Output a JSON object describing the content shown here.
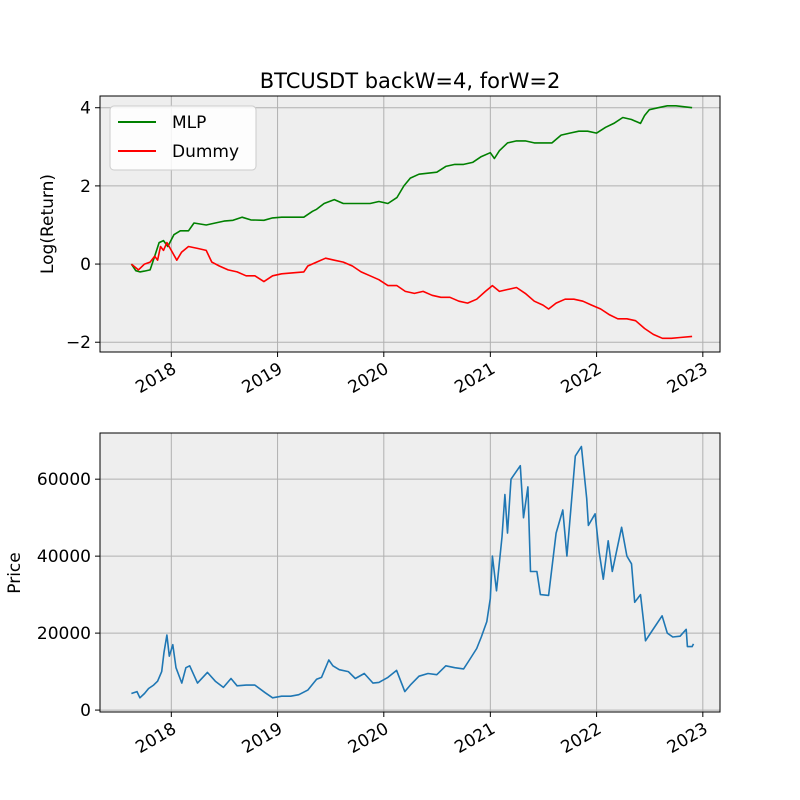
{
  "chart_data": [
    {
      "type": "line",
      "title": "BTCUSDT backW=4, forW=2",
      "xlabel": "",
      "ylabel": "Log(Return)",
      "x_ticks": [
        "2018",
        "2019",
        "2020",
        "2021",
        "2022",
        "2023"
      ],
      "y_ticks": [
        "−2",
        "0",
        "2",
        "4"
      ],
      "xlim": [
        "2017-05-01",
        "2023-03-01"
      ],
      "ylim": [
        -2.25,
        4.3
      ],
      "grid": true,
      "legend": "top-left",
      "series": [
        {
          "name": "MLP",
          "color": "#008000",
          "points": [
            [
              "2017-08-17",
              0.0
            ],
            [
              "2017-09-01",
              -0.17
            ],
            [
              "2017-09-15",
              -0.2
            ],
            [
              "2017-10-01",
              -0.18
            ],
            [
              "2017-10-20",
              -0.15
            ],
            [
              "2017-11-05",
              0.2
            ],
            [
              "2017-11-20",
              0.55
            ],
            [
              "2017-12-05",
              0.6
            ],
            [
              "2017-12-20",
              0.45
            ],
            [
              "2018-01-10",
              0.75
            ],
            [
              "2018-02-01",
              0.85
            ],
            [
              "2018-03-01",
              0.85
            ],
            [
              "2018-03-20",
              1.05
            ],
            [
              "2018-05-01",
              1.0
            ],
            [
              "2018-06-01",
              1.05
            ],
            [
              "2018-07-01",
              1.1
            ],
            [
              "2018-08-01",
              1.12
            ],
            [
              "2018-09-01",
              1.2
            ],
            [
              "2018-10-01",
              1.13
            ],
            [
              "2018-11-15",
              1.12
            ],
            [
              "2018-12-15",
              1.18
            ],
            [
              "2019-01-15",
              1.2
            ],
            [
              "2019-03-01",
              1.2
            ],
            [
              "2019-04-01",
              1.2
            ],
            [
              "2019-05-01",
              1.35
            ],
            [
              "2019-05-15",
              1.4
            ],
            [
              "2019-06-10",
              1.55
            ],
            [
              "2019-07-15",
              1.65
            ],
            [
              "2019-08-15",
              1.55
            ],
            [
              "2019-10-01",
              1.55
            ],
            [
              "2019-11-15",
              1.55
            ],
            [
              "2019-12-15",
              1.6
            ],
            [
              "2020-01-15",
              1.55
            ],
            [
              "2020-02-15",
              1.7
            ],
            [
              "2020-03-10",
              2.0
            ],
            [
              "2020-04-01",
              2.2
            ],
            [
              "2020-05-01",
              2.3
            ],
            [
              "2020-07-01",
              2.35
            ],
            [
              "2020-08-01",
              2.5
            ],
            [
              "2020-09-01",
              2.55
            ],
            [
              "2020-10-01",
              2.55
            ],
            [
              "2020-11-01",
              2.6
            ],
            [
              "2020-12-01",
              2.75
            ],
            [
              "2021-01-01",
              2.85
            ],
            [
              "2021-01-15",
              2.7
            ],
            [
              "2021-02-01",
              2.9
            ],
            [
              "2021-03-01",
              3.1
            ],
            [
              "2021-04-01",
              3.15
            ],
            [
              "2021-05-01",
              3.15
            ],
            [
              "2021-06-01",
              3.1
            ],
            [
              "2021-08-01",
              3.1
            ],
            [
              "2021-09-01",
              3.3
            ],
            [
              "2021-10-01",
              3.35
            ],
            [
              "2021-11-01",
              3.4
            ],
            [
              "2021-12-01",
              3.4
            ],
            [
              "2022-01-01",
              3.35
            ],
            [
              "2022-02-01",
              3.5
            ],
            [
              "2022-03-01",
              3.6
            ],
            [
              "2022-04-01",
              3.75
            ],
            [
              "2022-05-01",
              3.7
            ],
            [
              "2022-06-01",
              3.6
            ],
            [
              "2022-06-15",
              3.8
            ],
            [
              "2022-07-01",
              3.95
            ],
            [
              "2022-08-01",
              4.0
            ],
            [
              "2022-09-01",
              4.05
            ],
            [
              "2022-10-01",
              4.05
            ],
            [
              "2022-11-25",
              4.0
            ]
          ]
        },
        {
          "name": "Dummy",
          "color": "#ff0000",
          "points": [
            [
              "2017-08-17",
              0.0
            ],
            [
              "2017-09-10",
              -0.15
            ],
            [
              "2017-10-01",
              0.0
            ],
            [
              "2017-10-20",
              0.05
            ],
            [
              "2017-11-05",
              0.2
            ],
            [
              "2017-11-15",
              0.1
            ],
            [
              "2017-11-25",
              0.45
            ],
            [
              "2017-12-05",
              0.35
            ],
            [
              "2017-12-17",
              0.55
            ],
            [
              "2018-01-01",
              0.35
            ],
            [
              "2018-01-20",
              0.1
            ],
            [
              "2018-02-05",
              0.3
            ],
            [
              "2018-03-01",
              0.45
            ],
            [
              "2018-04-01",
              0.4
            ],
            [
              "2018-05-01",
              0.35
            ],
            [
              "2018-05-20",
              0.05
            ],
            [
              "2018-06-15",
              -0.05
            ],
            [
              "2018-07-15",
              -0.15
            ],
            [
              "2018-08-15",
              -0.2
            ],
            [
              "2018-09-15",
              -0.3
            ],
            [
              "2018-10-15",
              -0.3
            ],
            [
              "2018-11-15",
              -0.45
            ],
            [
              "2018-12-15",
              -0.3
            ],
            [
              "2019-01-15",
              -0.25
            ],
            [
              "2019-03-01",
              -0.22
            ],
            [
              "2019-04-01",
              -0.2
            ],
            [
              "2019-04-15",
              -0.05
            ],
            [
              "2019-05-15",
              0.05
            ],
            [
              "2019-06-15",
              0.15
            ],
            [
              "2019-07-15",
              0.1
            ],
            [
              "2019-08-15",
              0.05
            ],
            [
              "2019-09-15",
              -0.05
            ],
            [
              "2019-10-15",
              -0.2
            ],
            [
              "2019-11-15",
              -0.3
            ],
            [
              "2019-12-15",
              -0.4
            ],
            [
              "2020-01-15",
              -0.55
            ],
            [
              "2020-02-15",
              -0.55
            ],
            [
              "2020-03-15",
              -0.7
            ],
            [
              "2020-04-15",
              -0.75
            ],
            [
              "2020-05-15",
              -0.7
            ],
            [
              "2020-06-15",
              -0.8
            ],
            [
              "2020-07-15",
              -0.85
            ],
            [
              "2020-08-15",
              -0.85
            ],
            [
              "2020-09-15",
              -0.95
            ],
            [
              "2020-10-15",
              -1.0
            ],
            [
              "2020-11-15",
              -0.9
            ],
            [
              "2020-12-15",
              -0.7
            ],
            [
              "2021-01-08",
              -0.55
            ],
            [
              "2021-02-01",
              -0.7
            ],
            [
              "2021-03-01",
              -0.65
            ],
            [
              "2021-04-01",
              -0.6
            ],
            [
              "2021-05-01",
              -0.75
            ],
            [
              "2021-06-01",
              -0.95
            ],
            [
              "2021-07-01",
              -1.05
            ],
            [
              "2021-07-20",
              -1.15
            ],
            [
              "2021-08-15",
              -1.0
            ],
            [
              "2021-09-15",
              -0.9
            ],
            [
              "2021-10-15",
              -0.9
            ],
            [
              "2021-11-15",
              -0.95
            ],
            [
              "2021-12-15",
              -1.05
            ],
            [
              "2022-01-15",
              -1.15
            ],
            [
              "2022-02-15",
              -1.3
            ],
            [
              "2022-03-15",
              -1.4
            ],
            [
              "2022-04-15",
              -1.4
            ],
            [
              "2022-05-15",
              -1.45
            ],
            [
              "2022-06-15",
              -1.65
            ],
            [
              "2022-07-15",
              -1.8
            ],
            [
              "2022-08-15",
              -1.9
            ],
            [
              "2022-09-15",
              -1.9
            ],
            [
              "2022-10-15",
              -1.88
            ],
            [
              "2022-11-25",
              -1.85
            ]
          ]
        }
      ]
    },
    {
      "type": "line",
      "title": "",
      "xlabel": "",
      "ylabel": "Price",
      "x_ticks": [
        "2018",
        "2019",
        "2020",
        "2021",
        "2022",
        "2023"
      ],
      "y_ticks": [
        "0",
        "20000",
        "40000",
        "60000"
      ],
      "xlim": [
        "2017-05-01",
        "2023-03-01"
      ],
      "ylim": [
        -500,
        72000
      ],
      "grid": true,
      "series": [
        {
          "color": "#1f77b4",
          "points": [
            [
              "2017-08-17",
              4300
            ],
            [
              "2017-09-05",
              4800
            ],
            [
              "2017-09-15",
              3200
            ],
            [
              "2017-10-01",
              4300
            ],
            [
              "2017-10-15",
              5600
            ],
            [
              "2017-11-01",
              6500
            ],
            [
              "2017-11-15",
              7500
            ],
            [
              "2017-11-29",
              10000
            ],
            [
              "2017-12-07",
              15000
            ],
            [
              "2017-12-17",
              19500
            ],
            [
              "2017-12-25",
              14000
            ],
            [
              "2018-01-06",
              17000
            ],
            [
              "2018-01-17",
              11000
            ],
            [
              "2018-02-06",
              7000
            ],
            [
              "2018-02-20",
              11000
            ],
            [
              "2018-03-05",
              11500
            ],
            [
              "2018-04-01",
              7000
            ],
            [
              "2018-05-05",
              9800
            ],
            [
              "2018-06-01",
              7500
            ],
            [
              "2018-06-29",
              5900
            ],
            [
              "2018-07-25",
              8200
            ],
            [
              "2018-08-15",
              6300
            ],
            [
              "2018-09-15",
              6500
            ],
            [
              "2018-10-15",
              6500
            ],
            [
              "2018-11-20",
              4500
            ],
            [
              "2018-12-15",
              3200
            ],
            [
              "2019-01-15",
              3600
            ],
            [
              "2019-02-15",
              3600
            ],
            [
              "2019-03-15",
              4000
            ],
            [
              "2019-04-15",
              5200
            ],
            [
              "2019-05-15",
              8000
            ],
            [
              "2019-06-01",
              8500
            ],
            [
              "2019-06-26",
              13000
            ],
            [
              "2019-07-10",
              11500
            ],
            [
              "2019-08-01",
              10500
            ],
            [
              "2019-09-01",
              10000
            ],
            [
              "2019-09-25",
              8200
            ],
            [
              "2019-10-26",
              9500
            ],
            [
              "2019-11-25",
              7000
            ],
            [
              "2019-12-15",
              7200
            ],
            [
              "2020-01-15",
              8500
            ],
            [
              "2020-02-14",
              10300
            ],
            [
              "2020-03-13",
              4800
            ],
            [
              "2020-04-01",
              6500
            ],
            [
              "2020-05-01",
              8800
            ],
            [
              "2020-06-01",
              9500
            ],
            [
              "2020-07-01",
              9200
            ],
            [
              "2020-08-01",
              11500
            ],
            [
              "2020-09-01",
              11000
            ],
            [
              "2020-10-01",
              10700
            ],
            [
              "2020-10-21",
              13000
            ],
            [
              "2020-11-15",
              16000
            ],
            [
              "2020-12-01",
              19000
            ],
            [
              "2020-12-20",
              23000
            ],
            [
              "2021-01-01",
              29000
            ],
            [
              "2021-01-08",
              40000
            ],
            [
              "2021-01-22",
              31000
            ],
            [
              "2021-02-10",
              45000
            ],
            [
              "2021-02-20",
              56000
            ],
            [
              "2021-03-01",
              46000
            ],
            [
              "2021-03-13",
              60000
            ],
            [
              "2021-04-14",
              63500
            ],
            [
              "2021-04-25",
              50000
            ],
            [
              "2021-05-10",
              58000
            ],
            [
              "2021-05-19",
              36000
            ],
            [
              "2021-06-10",
              36000
            ],
            [
              "2021-06-22",
              30000
            ],
            [
              "2021-07-20",
              29800
            ],
            [
              "2021-08-15",
              46000
            ],
            [
              "2021-09-07",
              52000
            ],
            [
              "2021-09-21",
              40000
            ],
            [
              "2021-10-20",
              66000
            ],
            [
              "2021-11-10",
              68500
            ],
            [
              "2021-11-28",
              55000
            ],
            [
              "2021-12-04",
              48000
            ],
            [
              "2021-12-27",
              51000
            ],
            [
              "2022-01-10",
              41000
            ],
            [
              "2022-01-24",
              34000
            ],
            [
              "2022-02-10",
              44000
            ],
            [
              "2022-02-24",
              36000
            ],
            [
              "2022-03-28",
              47500
            ],
            [
              "2022-04-15",
              40000
            ],
            [
              "2022-05-01",
              38000
            ],
            [
              "2022-05-12",
              28000
            ],
            [
              "2022-06-01",
              30000
            ],
            [
              "2022-06-13",
              22000
            ],
            [
              "2022-06-18",
              18000
            ],
            [
              "2022-07-01",
              19500
            ],
            [
              "2022-08-14",
              24500
            ],
            [
              "2022-09-01",
              20000
            ],
            [
              "2022-09-20",
              19000
            ],
            [
              "2022-10-15",
              19200
            ],
            [
              "2022-11-05",
              21000
            ],
            [
              "2022-11-09",
              16500
            ],
            [
              "2022-11-25",
              16500
            ],
            [
              "2022-11-30",
              17200
            ]
          ]
        }
      ]
    }
  ]
}
